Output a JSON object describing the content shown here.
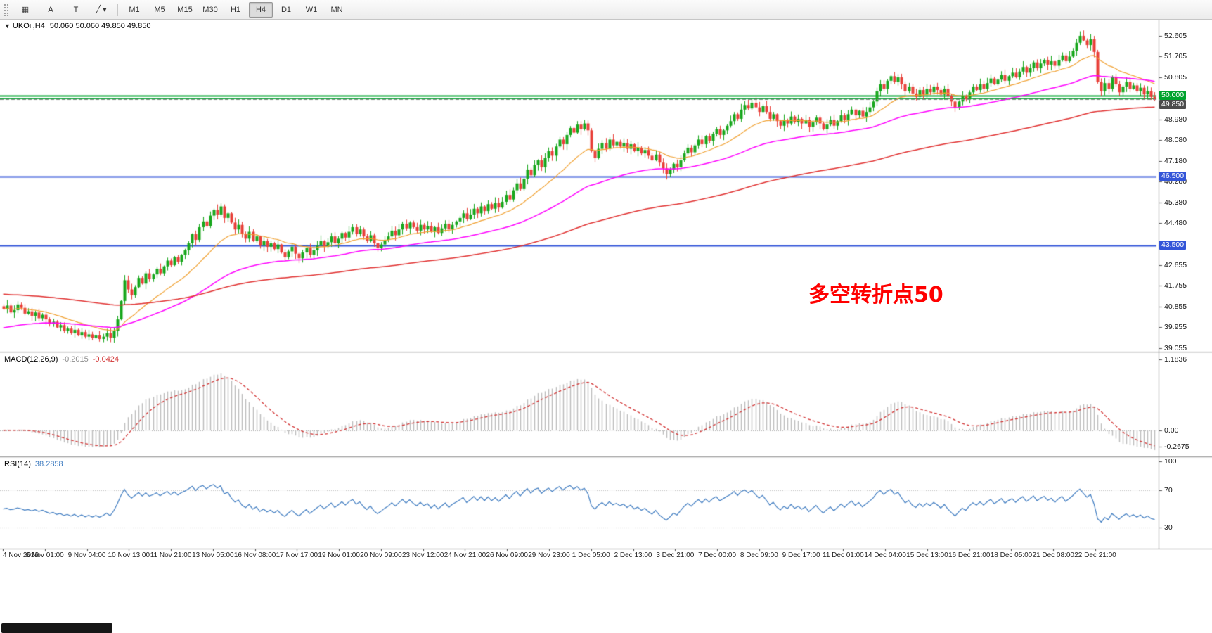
{
  "toolbar": {
    "left_buttons": [
      {
        "name": "chart-grid-button",
        "glyph": "▦"
      },
      {
        "name": "cursor-arrow-button",
        "glyph": "A"
      },
      {
        "name": "text-tool-button",
        "glyph": "T"
      },
      {
        "name": "draw-tools-button",
        "glyph": "╱",
        "caret": "▾"
      }
    ],
    "timeframes": [
      {
        "label": "M1"
      },
      {
        "label": "M5"
      },
      {
        "label": "M15"
      },
      {
        "label": "M30"
      },
      {
        "label": "H1"
      },
      {
        "label": "H4",
        "active": true
      },
      {
        "label": "D1"
      },
      {
        "label": "W1"
      },
      {
        "label": "MN"
      }
    ]
  },
  "chart": {
    "colors": {
      "up": "#18a71d",
      "down": "#e8403a",
      "ma_fast": "#f0a030",
      "ma_mid": "#ff00ff",
      "ma_slow": "#e03030",
      "macd_hist": "#bbbbbb",
      "macd_signal": "#d23434",
      "rsi_line": "#3e7bc0",
      "level_green": "#00a32e",
      "level_blue": "#3355d8",
      "bid_tag_bg": "#4c4c4c"
    }
  },
  "chart_data": {
    "type": "candlestick",
    "symbol": "UKOil",
    "timeframe": "H4",
    "title": "UKOil,H4",
    "ohlc_display": {
      "open": "50.060",
      "high": "50.060",
      "low": "49.850",
      "close": "49.850"
    },
    "ohlc_label": "50.060 50.060 49.850 49.850",
    "price_range": [
      38.9,
      53.3
    ],
    "price_axis_labels": [
      52.605,
      51.705,
      50.805,
      48.98,
      48.08,
      47.18,
      46.28,
      45.38,
      44.48,
      42.655,
      41.755,
      40.855,
      39.955,
      39.055
    ],
    "time_labels": [
      "4 Nov 2020",
      "6 Nov 01:00",
      "9 Nov 04:00",
      "10 Nov 13:00",
      "11 Nov 21:00",
      "13 Nov 05:00",
      "16 Nov 08:00",
      "17 Nov 17:00",
      "19 Nov 01:00",
      "20 Nov 09:00",
      "23 Nov 12:00",
      "24 Nov 21:00",
      "26 Nov 09:00",
      "29 Nov 23:00",
      "1 Dec 05:00",
      "2 Dec 13:00",
      "3 Dec 21:00",
      "7 Dec 00:00",
      "8 Dec 09:00",
      "9 Dec 17:00",
      "11 Dec 01:00",
      "14 Dec 04:00",
      "15 Dec 13:00",
      "16 Dec 21:00",
      "18 Dec 05:00",
      "21 Dec 08:00",
      "22 Dec 21:00"
    ],
    "levels": [
      {
        "price": 50.0,
        "label": "50.000",
        "color": "#00a32e",
        "width": 2,
        "tag_bg": "#00a32e"
      },
      {
        "price": 49.88,
        "color": "#00a32e",
        "width": 1
      },
      {
        "price": 46.5,
        "label": "46.500",
        "color": "#3355d8",
        "width": 2,
        "tag_bg": "#3355d8"
      },
      {
        "price": 43.5,
        "label": "43.500",
        "color": "#3355d8",
        "width": 2,
        "tag_bg": "#3355d8"
      }
    ],
    "bid": {
      "price": 49.85,
      "label": "49.850"
    },
    "annotation": {
      "text": "多空转折点50",
      "color": "#ff0000"
    },
    "closes": [
      40.75,
      40.9,
      40.6,
      40.7,
      40.95,
      40.8,
      40.55,
      40.65,
      40.45,
      40.6,
      40.35,
      40.5,
      40.3,
      40.1,
      40.2,
      39.95,
      40.05,
      39.8,
      39.9,
      39.7,
      39.85,
      39.6,
      39.75,
      39.55,
      39.65,
      39.5,
      39.6,
      39.45,
      39.55,
      39.7,
      39.5,
      39.8,
      40.3,
      41.1,
      42.0,
      41.6,
      41.35,
      41.7,
      42.1,
      41.85,
      42.3,
      42.05,
      42.25,
      42.5,
      42.3,
      42.6,
      42.85,
      42.65,
      43.0,
      42.8,
      43.1,
      43.3,
      43.6,
      44.0,
      43.75,
      44.3,
      44.55,
      44.35,
      44.8,
      45.05,
      44.85,
      45.2,
      44.7,
      44.9,
      44.5,
      44.2,
      44.4,
      44.0,
      43.8,
      44.1,
      43.7,
      43.9,
      43.5,
      43.7,
      43.45,
      43.6,
      43.35,
      43.55,
      43.2,
      43.0,
      43.25,
      43.45,
      43.15,
      42.95,
      43.2,
      43.4,
      43.1,
      43.3,
      43.5,
      43.7,
      43.45,
      43.65,
      43.9,
      43.6,
      43.8,
      44.05,
      43.85,
      44.1,
      44.3,
      44.0,
      44.2,
      43.9,
      43.7,
      43.95,
      43.6,
      43.4,
      43.55,
      43.75,
      43.9,
      44.15,
      43.95,
      44.2,
      44.45,
      44.25,
      44.5,
      44.3,
      44.15,
      44.4,
      44.2,
      44.35,
      44.1,
      44.3,
      44.05,
      44.25,
      44.45,
      44.2,
      44.4,
      44.55,
      44.7,
      44.9,
      44.65,
      44.85,
      45.1,
      44.9,
      45.2,
      45.0,
      45.3,
      45.1,
      45.35,
      45.15,
      45.4,
      45.7,
      45.5,
      45.9,
      46.2,
      45.95,
      46.4,
      46.8,
      46.55,
      47.0,
      47.2,
      46.9,
      47.3,
      47.6,
      47.4,
      47.8,
      48.1,
      47.9,
      48.3,
      48.6,
      48.4,
      48.75,
      48.55,
      48.8,
      48.5,
      47.6,
      47.3,
      47.7,
      47.95,
      47.7,
      48.1,
      47.85,
      48.0,
      47.8,
      47.95,
      47.7,
      47.9,
      47.6,
      47.75,
      47.5,
      47.65,
      47.4,
      47.2,
      47.45,
      47.1,
      46.85,
      46.6,
      46.8,
      47.05,
      46.9,
      47.2,
      47.5,
      47.75,
      47.55,
      47.85,
      48.1,
      47.9,
      48.25,
      48.05,
      48.35,
      48.55,
      48.3,
      48.5,
      48.7,
      48.9,
      49.2,
      49.0,
      49.4,
      49.6,
      49.45,
      49.7,
      49.5,
      49.3,
      49.55,
      49.3,
      49.0,
      49.2,
      48.9,
      48.7,
      48.95,
      48.8,
      49.1,
      48.85,
      49.0,
      48.8,
      48.95,
      48.65,
      48.85,
      49.05,
      48.8,
      48.55,
      48.75,
      48.95,
      48.7,
      48.9,
      49.15,
      48.95,
      49.2,
      49.4,
      49.15,
      49.35,
      49.1,
      49.3,
      49.5,
      49.75,
      50.2,
      50.5,
      50.3,
      50.65,
      50.85,
      50.6,
      50.8,
      50.5,
      50.2,
      50.4,
      50.1,
      49.95,
      50.25,
      50.05,
      50.3,
      50.15,
      50.4,
      50.25,
      50.05,
      50.3,
      50.0,
      49.75,
      49.5,
      49.75,
      50.0,
      49.85,
      50.15,
      50.4,
      50.25,
      50.5,
      50.3,
      50.55,
      50.75,
      50.5,
      50.7,
      50.9,
      50.65,
      50.85,
      51.0,
      50.8,
      51.05,
      51.25,
      51.0,
      51.2,
      51.45,
      51.2,
      51.4,
      51.55,
      51.35,
      51.5,
      51.3,
      51.55,
      51.75,
      51.5,
      51.7,
      51.95,
      52.3,
      52.6,
      52.4,
      52.2,
      52.45,
      51.9,
      50.6,
      50.2,
      50.55,
      50.3,
      50.8,
      50.5,
      50.15,
      50.4,
      50.6,
      50.3,
      50.45,
      50.2,
      50.35,
      50.06,
      50.2,
      49.95,
      49.85
    ],
    "indicators": {
      "moving_averages": [
        {
          "period": 20,
          "color": "#f0a030",
          "width": 1.2
        },
        {
          "period": 60,
          "color": "#ff00ff",
          "width": 1.5,
          "seed": 39.9
        },
        {
          "period": 150,
          "color": "#e03030",
          "width": 1.5,
          "seed": 41.4
        }
      ],
      "macd": {
        "label": "MACD(12,26,9)",
        "main": "-0.2015",
        "signal": "-0.0424",
        "fast": 12,
        "slow": 26,
        "smoothing": 9,
        "axis": [
          "1.1836",
          "0.00",
          "-0.2675"
        ]
      },
      "rsi": {
        "label": "RSI(14)",
        "value": "38.2858",
        "period": 14,
        "axis": [
          "100",
          "70",
          "30"
        ],
        "levels": [
          70,
          30
        ]
      }
    }
  }
}
